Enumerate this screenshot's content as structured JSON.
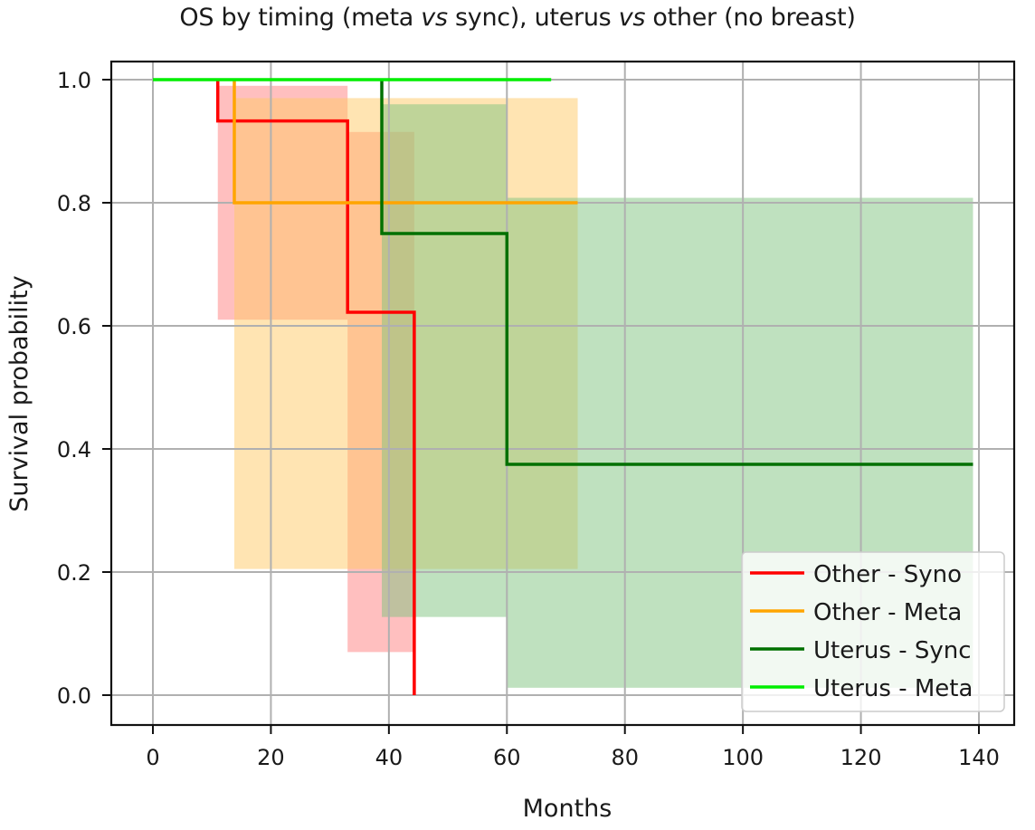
{
  "chart_data": {
    "type": "line",
    "subtype": "kaplan-meier step with confidence bands",
    "title": "OS by timing (meta vs sync), uterus vs other (no breast)",
    "title_parts": [
      "OS by timing (meta ",
      "vs",
      " sync), uterus ",
      "vs",
      " other (no breast)"
    ],
    "xlabel": "Months",
    "ylabel": "Survival probability",
    "xlim": [
      -7,
      146
    ],
    "ylim": [
      -0.05,
      1.03
    ],
    "xticks": [
      0,
      20,
      40,
      60,
      80,
      100,
      120,
      140
    ],
    "xtick_labels": [
      "0",
      "20",
      "40",
      "60",
      "80",
      "100",
      "120",
      "140"
    ],
    "yticks": [
      0.0,
      0.2,
      0.4,
      0.6,
      0.8,
      1.0
    ],
    "ytick_labels": [
      "0.0",
      "0.2",
      "0.4",
      "0.6",
      "0.8",
      "1.0"
    ],
    "grid": true,
    "legend_position": "lower right",
    "series": [
      {
        "name": "Other - Syno",
        "color": "#ff0000",
        "band_color": "#ff8080",
        "steps": [
          [
            11,
            1.0
          ],
          [
            11,
            0.933
          ],
          [
            33,
            0.933
          ],
          [
            33,
            0.622
          ],
          [
            44.3,
            0.622
          ],
          [
            44.3,
            0.0
          ]
        ],
        "ci": [
          {
            "x0": 11,
            "x1": 33,
            "lower": 0.61,
            "upper": 0.99
          },
          {
            "x0": 33,
            "x1": 44.3,
            "lower": 0.07,
            "upper": 0.915
          }
        ]
      },
      {
        "name": "Other - Meta",
        "color": "#ffa500",
        "band_color": "#ffc966",
        "steps": [
          [
            13.8,
            1.0
          ],
          [
            13.8,
            0.8
          ],
          [
            72,
            0.8
          ]
        ],
        "ci": [
          {
            "x0": 13.8,
            "x1": 72,
            "lower": 0.205,
            "upper": 0.97
          }
        ]
      },
      {
        "name": "Uterus - Sync",
        "color": "#007000",
        "band_color": "#7fc47f",
        "steps": [
          [
            38.8,
            1.0
          ],
          [
            38.8,
            0.75
          ],
          [
            60,
            0.75
          ],
          [
            60,
            0.375
          ],
          [
            139,
            0.375
          ]
        ],
        "ci": [
          {
            "x0": 38.8,
            "x1": 60,
            "lower": 0.127,
            "upper": 0.96
          },
          {
            "x0": 60,
            "x1": 139,
            "lower": 0.012,
            "upper": 0.808
          }
        ]
      },
      {
        "name": "Uterus - Meta",
        "color": "#00ee00",
        "band_color": null,
        "steps": [
          [
            0,
            1.0
          ],
          [
            67.5,
            1.0
          ]
        ],
        "ci": []
      }
    ]
  }
}
